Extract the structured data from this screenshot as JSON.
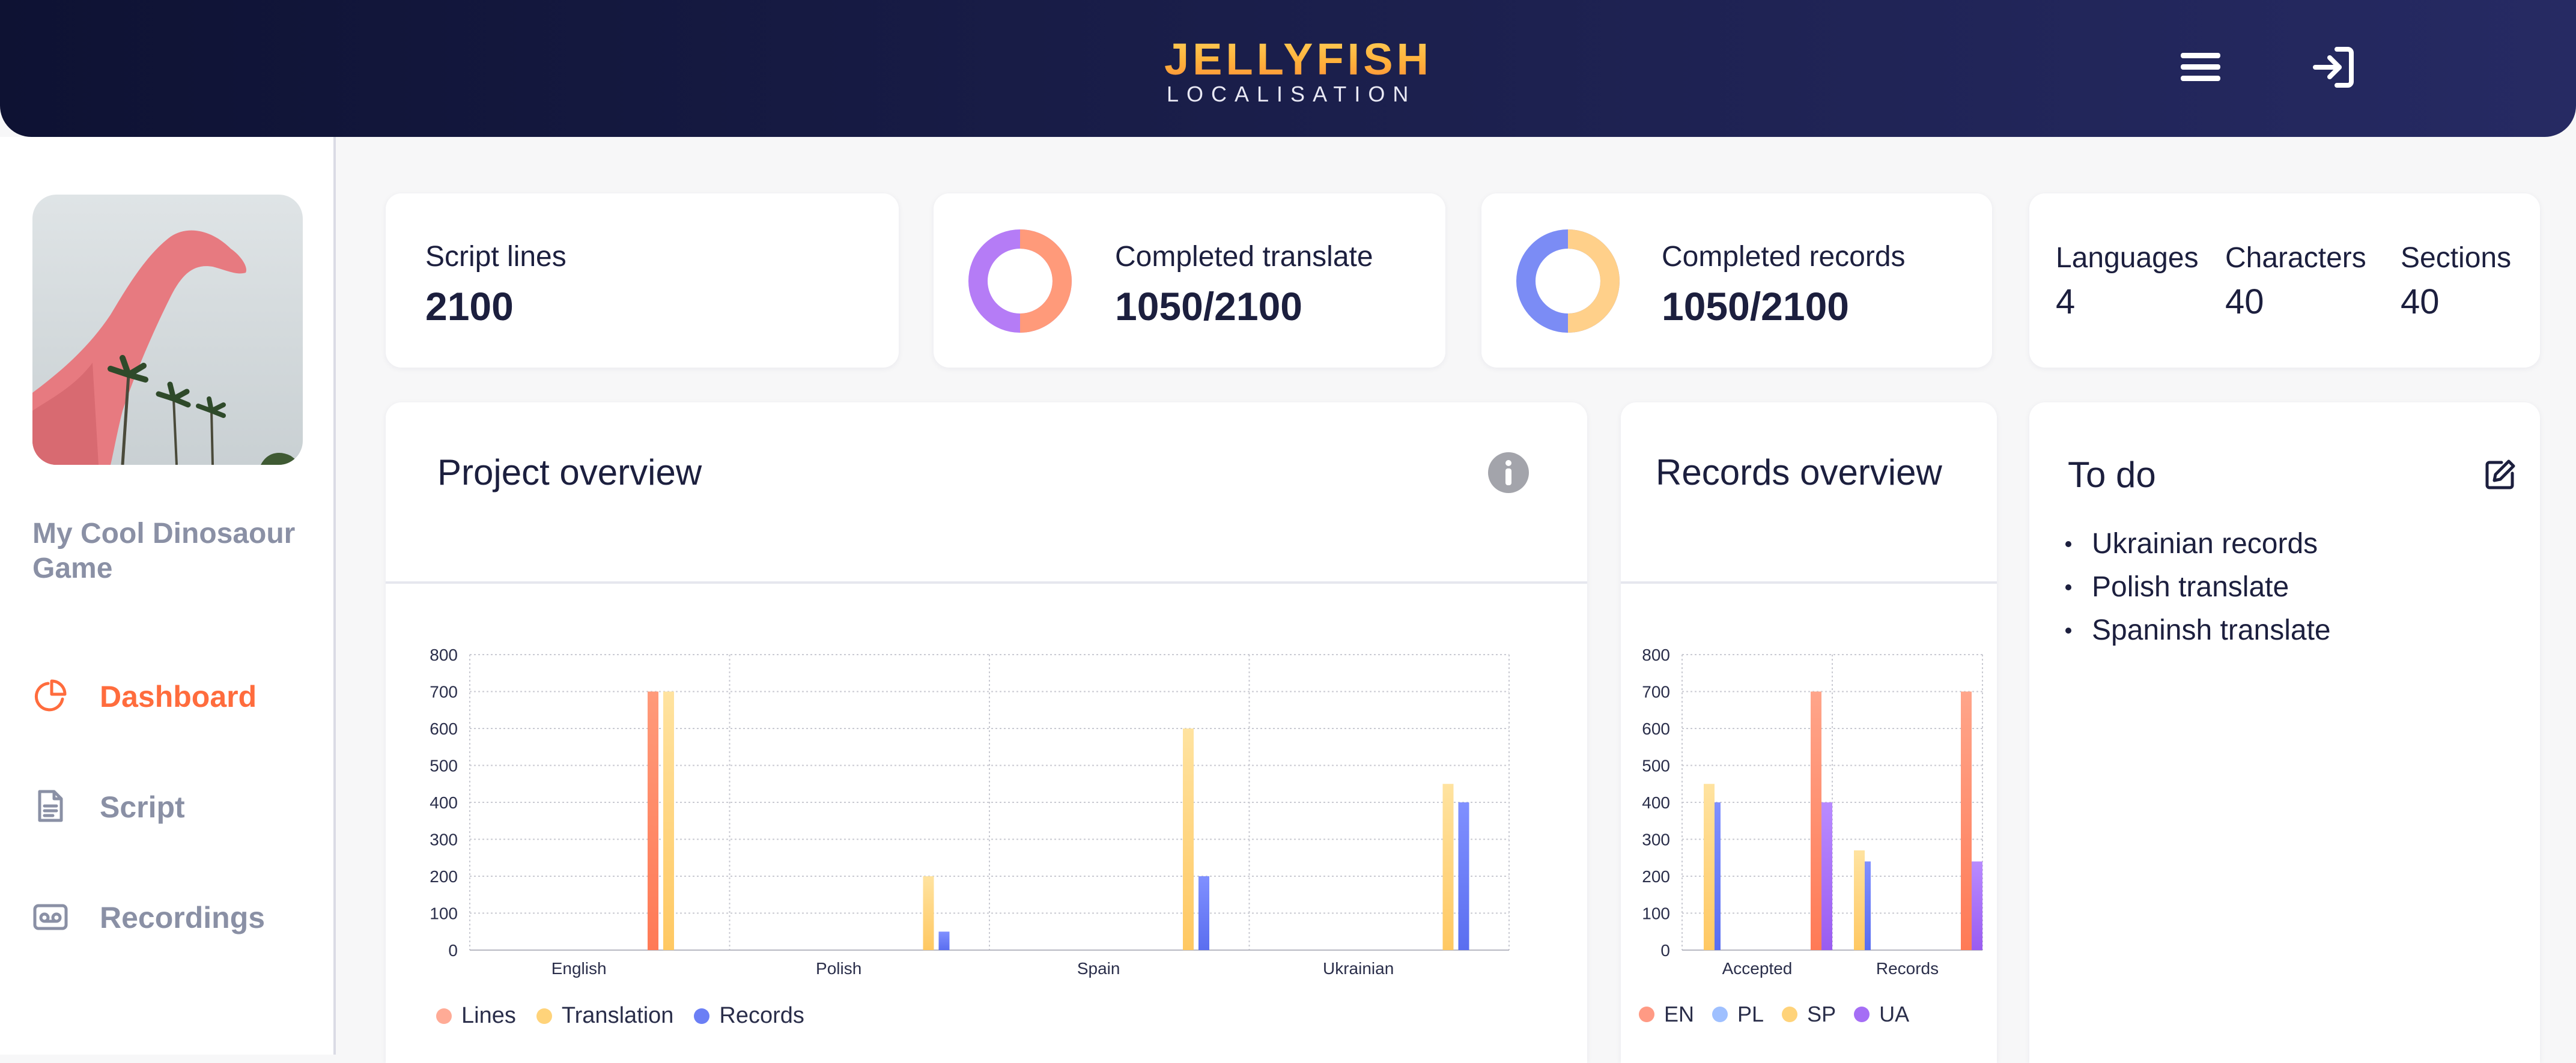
{
  "header": {
    "logo_main": "JELLYFISH",
    "logo_sub": "LOCALISATION",
    "menu_icon": "hamburger-menu-icon",
    "login_icon": "sign-in-icon"
  },
  "sidebar": {
    "project_name": "My Cool Dinosaour Game",
    "items": [
      {
        "label": "Dashboard",
        "icon": "pie-chart-icon",
        "active": true
      },
      {
        "label": "Script",
        "icon": "document-icon",
        "active": false
      },
      {
        "label": "Recordings",
        "icon": "voicemail-icon",
        "active": false
      }
    ]
  },
  "stats": {
    "script_lines": {
      "label": "Script lines",
      "value": "2100"
    },
    "completed_translate": {
      "label": "Completed translate",
      "value": "1050/2100",
      "fraction": 0.5,
      "colors": [
        "#ff9a7a",
        "#b57cf6"
      ]
    },
    "completed_records": {
      "label": "Completed records",
      "value": "1050/2100",
      "fraction": 0.5,
      "colors": [
        "#ffd08a",
        "#7b8cf5"
      ]
    },
    "counts": [
      {
        "label": "Languages",
        "value": "4"
      },
      {
        "label": "Characters",
        "value": "40"
      },
      {
        "label": "Sections",
        "value": "40"
      }
    ]
  },
  "project_overview": {
    "title": "Project overview",
    "info_icon": "info-icon"
  },
  "records_overview": {
    "title": "Records overview"
  },
  "todo": {
    "title": "To do",
    "edit_icon": "edit-icon",
    "items": [
      "Ukrainian records",
      "Polish translate",
      "Spaninsh translate"
    ]
  },
  "colors": {
    "accent": "#ff6c3d",
    "header_bg": "#141838",
    "lines": "#ff8a6a",
    "translation": "#ffd37a",
    "records": "#6b7ff5",
    "en": "#ff8a6a",
    "pl": "#9fc0ff",
    "sp": "#ffd37a",
    "ua": "#a56ef5"
  },
  "chart_data": [
    {
      "type": "bar",
      "categories": [
        "English",
        "Polish",
        "Spain",
        "Ukrainian"
      ],
      "series": [
        {
          "name": "Lines",
          "values": [
            700,
            0,
            0,
            0
          ]
        },
        {
          "name": "Translation",
          "values": [
            700,
            200,
            600,
            450
          ]
        },
        {
          "name": "Records",
          "values": [
            0,
            50,
            200,
            400
          ]
        }
      ],
      "yticks": [
        0,
        100,
        200,
        300,
        400,
        500,
        600,
        700,
        800
      ],
      "ylim": [
        0,
        800
      ],
      "grid": true,
      "legend": "bottom-left"
    },
    {
      "type": "bar",
      "categories": [
        "Accepted",
        "Records"
      ],
      "series": [
        {
          "name": "EN",
          "values": [
            700,
            700
          ]
        },
        {
          "name": "PL",
          "values": [
            400,
            240
          ]
        },
        {
          "name": "SP",
          "values": [
            450,
            270
          ]
        },
        {
          "name": "UA",
          "values": [
            400,
            240
          ]
        }
      ],
      "yticks": [
        0,
        100,
        200,
        300,
        400,
        500,
        600,
        700,
        800
      ],
      "ylim": [
        0,
        800
      ],
      "grid": true,
      "legend": "bottom-left"
    }
  ]
}
